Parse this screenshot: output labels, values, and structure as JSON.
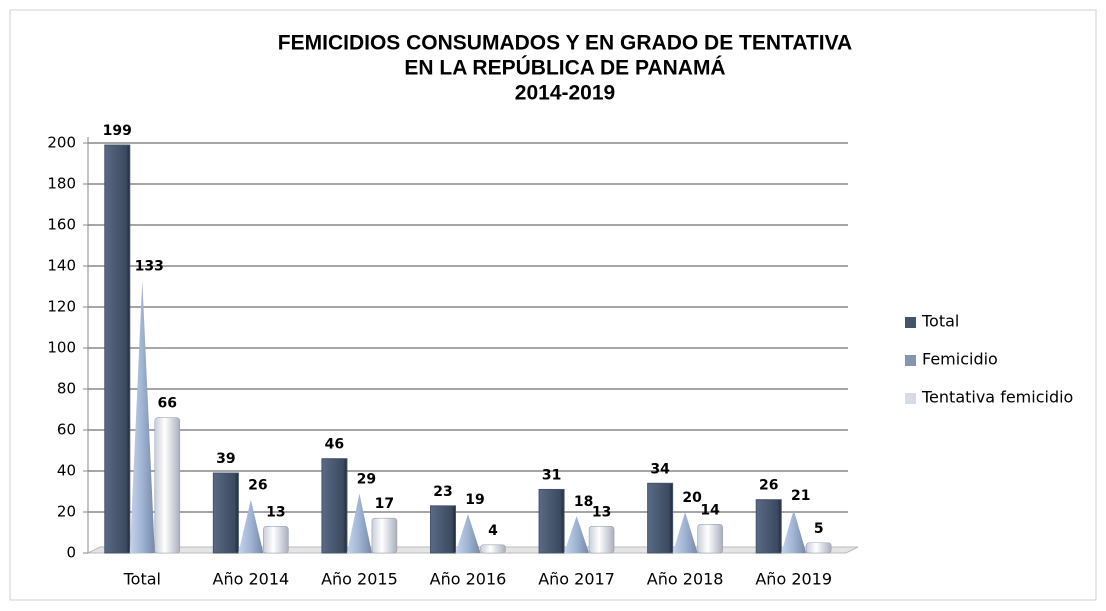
{
  "chart_data": {
    "type": "bar",
    "title": [
      "FEMICIDIOS CONSUMADOS Y EN GRADO DE TENTATIVA",
      "EN LA REPÚBLICA DE PANAMÁ",
      "2014-2019"
    ],
    "categories": [
      "Total",
      "Año 2014",
      "Año 2015",
      "Año 2016",
      "Año 2017",
      "Año 2018",
      "Año 2019"
    ],
    "series": [
      {
        "name": "Total",
        "color": "#44546a",
        "values": [
          199,
          39,
          46,
          23,
          31,
          34,
          26
        ]
      },
      {
        "name": "Femicidio",
        "color": "#8497b0",
        "values": [
          133,
          26,
          29,
          19,
          18,
          20,
          21
        ]
      },
      {
        "name": "Tentativa femicidio",
        "color": "#d6dce5",
        "values": [
          66,
          13,
          17,
          4,
          13,
          14,
          5
        ]
      }
    ],
    "ylim": [
      0,
      200
    ],
    "yticks": [
      0,
      20,
      40,
      60,
      80,
      100,
      120,
      140,
      160,
      180,
      200
    ],
    "grid": true,
    "legend": "right"
  }
}
